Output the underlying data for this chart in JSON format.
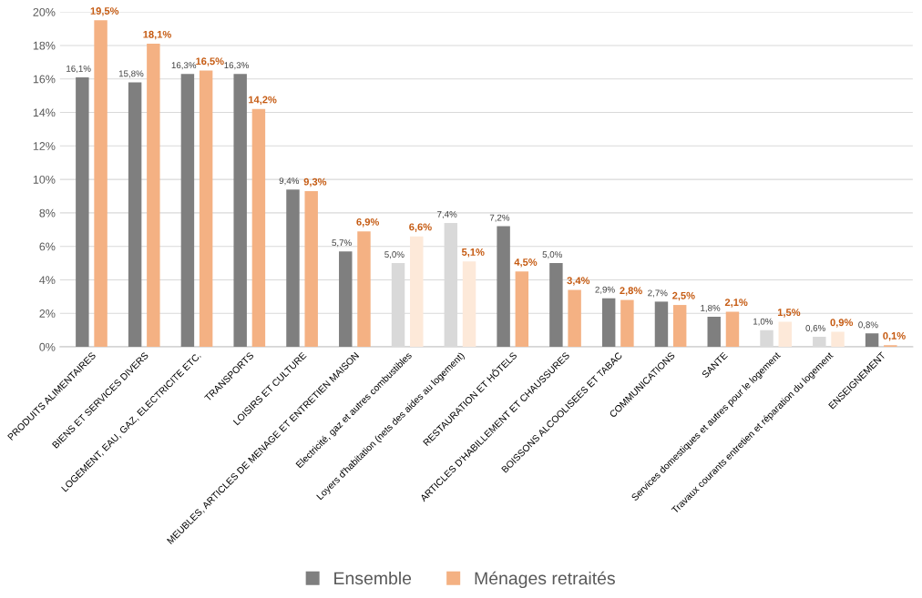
{
  "chart_data": {
    "type": "bar",
    "categories": [
      "PRODUITS ALIMENTAIRES",
      "BIENS ET SERVICES DIVERS",
      "LOGEMENT, EAU, GAZ, ELECTRICITE ETC.",
      "TRANSPORTS",
      "LOISIRS ET CULTURE",
      "MEUBLES, ARTICLES DE MENAGE ET ENTRETIEN MAISON",
      "Electricité, gaz et autres combustibles",
      "Loyers d'habitation (nets des aides au logement)",
      "RESTAURATION ET HÔTELS",
      "ARTICLES D'HABILLEMENT ET CHAUSSURES",
      "BOISSONS ALCOOLISEES ET TABAC",
      "COMMUNICATIONS",
      "SANTE",
      "Services domestiques et autres pour le logement",
      "Travaux courants entretien et réparation du logement",
      "ENSEIGNEMENT"
    ],
    "series": [
      {
        "name": "Ensemble",
        "color": "#7f7f7f",
        "colors": [
          "#7f7f7f",
          "#7f7f7f",
          "#7f7f7f",
          "#7f7f7f",
          "#7f7f7f",
          "#7f7f7f",
          "#d9d9d9",
          "#d9d9d9",
          "#7f7f7f",
          "#7f7f7f",
          "#7f7f7f",
          "#7f7f7f",
          "#7f7f7f",
          "#d9d9d9",
          "#d9d9d9",
          "#7f7f7f"
        ],
        "values": [
          16.1,
          15.8,
          16.3,
          16.3,
          9.4,
          5.7,
          5.0,
          7.4,
          7.2,
          5.0,
          2.9,
          2.7,
          1.8,
          1.0,
          0.6,
          0.8
        ],
        "value_labels": [
          "16,1%",
          "15,8%",
          "16,3%",
          "16,3%",
          "9,4%",
          "5,7%",
          "5,0%",
          "7,4%",
          "7,2%",
          "5,0%",
          "2,9%",
          "2,7%",
          "1,8%",
          "1,0%",
          "0,6%",
          "0,8%"
        ]
      },
      {
        "name": "Ménages retraités",
        "color": "#f4b183",
        "colors": [
          "#f4b183",
          "#f4b183",
          "#f4b183",
          "#f4b183",
          "#f4b183",
          "#f4b183",
          "#fde9d9",
          "#fde9d9",
          "#f4b183",
          "#f4b183",
          "#f4b183",
          "#f4b183",
          "#f4b183",
          "#fde9d9",
          "#fde9d9",
          "#f4b183"
        ],
        "values": [
          19.5,
          18.1,
          16.5,
          14.2,
          9.3,
          6.9,
          6.6,
          5.1,
          4.5,
          3.4,
          2.8,
          2.5,
          2.1,
          1.5,
          0.9,
          0.1
        ],
        "value_labels": [
          "19,5%",
          "18,1%",
          "16,5%",
          "14,2%",
          "9,3%",
          "6,9%",
          "6,6%",
          "5,1%",
          "4,5%",
          "3,4%",
          "2,8%",
          "2,5%",
          "2,1%",
          "1,5%",
          "0,9%",
          "0,1%"
        ]
      }
    ],
    "ylim": [
      0,
      20
    ],
    "yticks": [
      {
        "value": 0,
        "label": "0%"
      },
      {
        "value": 2,
        "label": "2%"
      },
      {
        "value": 4,
        "label": "4%"
      },
      {
        "value": 6,
        "label": "6%"
      },
      {
        "value": 8,
        "label": "8%"
      },
      {
        "value": 10,
        "label": "10%"
      },
      {
        "value": 12,
        "label": "12%"
      },
      {
        "value": 14,
        "label": "14%"
      },
      {
        "value": 16,
        "label": "16%"
      },
      {
        "value": 18,
        "label": "18%"
      },
      {
        "value": 20,
        "label": "20%"
      }
    ],
    "grid": "y",
    "legend": "bottom"
  }
}
